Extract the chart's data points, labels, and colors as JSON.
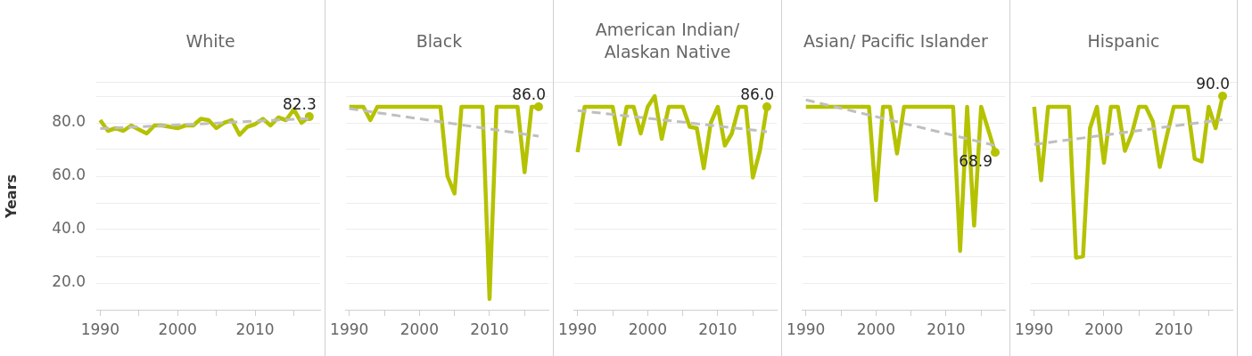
{
  "chart_data": [
    {
      "type": "line",
      "title": "White",
      "ylabel": "Years",
      "grid": "y",
      "x": [
        1990,
        1991,
        1992,
        1993,
        1994,
        1995,
        1996,
        1997,
        1998,
        1999,
        2000,
        2001,
        2002,
        2003,
        2004,
        2005,
        2006,
        2007,
        2008,
        2009,
        2010,
        2011,
        2012,
        2013,
        2014,
        2015,
        2016,
        2017
      ],
      "xlim": [
        1989.5,
        2018.4
      ],
      "xticks": [
        1990,
        {
          "value": 1995,
          "label": null
        },
        2000,
        {
          "value": 2005,
          "label": null
        },
        2010,
        {
          "value": 2015,
          "label": null
        }
      ],
      "ylim": [
        10,
        95
      ],
      "yticks": [
        {
          "value": 20,
          "label": "20.0"
        },
        {
          "value": 30,
          "label": null
        },
        {
          "value": 40,
          "label": "40.0"
        },
        {
          "value": 50,
          "label": null
        },
        {
          "value": 60,
          "label": "60.0"
        },
        {
          "value": 70,
          "label": null
        },
        {
          "value": 80,
          "label": "80.0"
        },
        {
          "value": 90,
          "label": null
        }
      ],
      "series": [
        {
          "type": "line",
          "color": "#bfbfbf",
          "line_style": "dashed",
          "x": [
            1990,
            2003.5,
            2017
          ],
          "values": [
            77.8,
            79.7,
            81.6
          ]
        },
        {
          "color": "#b5c200",
          "values": [
            81,
            77,
            78,
            77,
            79,
            77.5,
            76,
            79,
            79,
            78.5,
            78,
            79,
            79,
            81.5,
            81,
            78,
            80,
            81,
            75.5,
            78.5,
            79.5,
            81.5,
            79,
            82,
            81,
            85,
            80,
            82.3
          ],
          "value_labels": [
            null,
            null,
            null,
            null,
            null,
            null,
            null,
            null,
            null,
            null,
            null,
            null,
            null,
            null,
            null,
            null,
            null,
            null,
            null,
            null,
            null,
            null,
            null,
            null,
            null,
            null,
            null,
            "82.3"
          ]
        }
      ]
    },
    {
      "type": "line",
      "title": "Black",
      "tick_labels": "x",
      "grid": "y",
      "x": [
        1990,
        1991,
        1992,
        1993,
        1994,
        1995,
        1996,
        1997,
        1998,
        1999,
        2000,
        2001,
        2002,
        2003,
        2004,
        2005,
        2006,
        2007,
        2008,
        2009,
        2010,
        2011,
        2012,
        2013,
        2014,
        2015,
        2016,
        2017
      ],
      "xlim": [
        1989.5,
        2018.4
      ],
      "xticks": [
        1990,
        {
          "value": 1995,
          "label": null
        },
        2000,
        {
          "value": 2005,
          "label": null
        },
        2010,
        {
          "value": 2015,
          "label": null
        }
      ],
      "ylim": [
        10,
        95
      ],
      "yticks": [
        20,
        30,
        40,
        50,
        60,
        70,
        80,
        90
      ],
      "series": [
        {
          "type": "line",
          "color": "#bfbfbf",
          "line_style": "dashed",
          "x": [
            1990,
            2003.5,
            2017
          ],
          "values": [
            85.3,
            80.2,
            75
          ]
        },
        {
          "color": "#b5c200",
          "values": [
            86,
            86,
            86,
            81,
            86,
            86,
            86,
            86,
            86,
            86,
            86,
            86,
            86,
            86,
            60,
            53.5,
            86,
            86,
            86,
            86,
            14,
            86,
            86,
            86,
            86,
            61.5,
            86,
            86
          ],
          "value_labels": [
            null,
            null,
            null,
            null,
            null,
            null,
            null,
            null,
            null,
            null,
            null,
            null,
            null,
            null,
            null,
            null,
            null,
            null,
            null,
            null,
            null,
            null,
            null,
            null,
            null,
            null,
            null,
            "86.0"
          ]
        }
      ]
    },
    {
      "type": "line",
      "title": "American Indian/ Alaskan Native",
      "tick_labels": "x",
      "grid": "y",
      "x": [
        1990,
        1991,
        1992,
        1993,
        1994,
        1995,
        1996,
        1997,
        1998,
        1999,
        2000,
        2001,
        2002,
        2003,
        2004,
        2005,
        2006,
        2007,
        2008,
        2009,
        2010,
        2011,
        2012,
        2013,
        2014,
        2015,
        2016,
        2017
      ],
      "xlim": [
        1989.5,
        2018.4
      ],
      "xticks": [
        1990,
        {
          "value": 1995,
          "label": null
        },
        2000,
        {
          "value": 2005,
          "label": null
        },
        2010,
        {
          "value": 2015,
          "label": null
        }
      ],
      "ylim": [
        10,
        95
      ],
      "yticks": [
        20,
        30,
        40,
        50,
        60,
        70,
        80,
        90
      ],
      "series": [
        {
          "type": "line",
          "color": "#bfbfbf",
          "line_style": "dashed",
          "x": [
            1990,
            2003.5,
            2017
          ],
          "values": [
            84.6,
            80.7,
            76.7
          ]
        },
        {
          "color": "#b5c200",
          "values": [
            69,
            86,
            86,
            86,
            86,
            86,
            72,
            86,
            86,
            76,
            86,
            90,
            74,
            86,
            86,
            86,
            78.5,
            78,
            63,
            80,
            86,
            71.5,
            76,
            86,
            86,
            59.5,
            69.5,
            86
          ],
          "value_labels": [
            null,
            null,
            null,
            null,
            null,
            null,
            null,
            null,
            null,
            null,
            null,
            null,
            null,
            null,
            null,
            null,
            null,
            null,
            null,
            null,
            null,
            null,
            null,
            null,
            null,
            null,
            null,
            "86.0"
          ]
        }
      ]
    },
    {
      "type": "line",
      "title": "Asian/ Pacific Islander",
      "tick_labels": "x",
      "grid": "y",
      "x": [
        1990,
        1991,
        1992,
        1993,
        1994,
        1995,
        1996,
        1997,
        1998,
        1999,
        2000,
        2001,
        2002,
        2003,
        2004,
        2005,
        2006,
        2007,
        2008,
        2009,
        2010,
        2011,
        2012,
        2013,
        2014,
        2015,
        2016,
        2017
      ],
      "xlim": [
        1989.5,
        2018.4
      ],
      "xticks": [
        1990,
        {
          "value": 1995,
          "label": null
        },
        2000,
        {
          "value": 2005,
          "label": null
        },
        2010,
        {
          "value": 2015,
          "label": null
        }
      ],
      "ylim": [
        10,
        95
      ],
      "yticks": [
        20,
        30,
        40,
        50,
        60,
        70,
        80,
        90
      ],
      "series": [
        {
          "type": "line",
          "color": "#bfbfbf",
          "line_style": "dashed",
          "x": [
            1990,
            2003.5,
            2017
          ],
          "values": [
            88.6,
            80.1,
            71.5
          ]
        },
        {
          "color": "#b5c200",
          "values": [
            86,
            86,
            86,
            86,
            86,
            86,
            86,
            86,
            86,
            86,
            51,
            86,
            86,
            68.5,
            86,
            86,
            86,
            86,
            86,
            86,
            86,
            86,
            32,
            86,
            41.5,
            86,
            77.5,
            68.9
          ],
          "value_labels": [
            null,
            null,
            null,
            null,
            null,
            null,
            null,
            null,
            null,
            null,
            null,
            null,
            null,
            null,
            null,
            null,
            null,
            null,
            null,
            null,
            null,
            null,
            null,
            null,
            null,
            null,
            null,
            "68.9"
          ]
        }
      ]
    },
    {
      "type": "line",
      "title": "Hispanic",
      "tick_labels": "x",
      "grid": "y",
      "x": [
        1990,
        1991,
        1992,
        1993,
        1994,
        1995,
        1996,
        1997,
        1998,
        1999,
        2000,
        2001,
        2002,
        2003,
        2004,
        2005,
        2006,
        2007,
        2008,
        2009,
        2010,
        2011,
        2012,
        2013,
        2014,
        2015,
        2016,
        2017
      ],
      "xlim": [
        1989.5,
        2018.4
      ],
      "xticks": [
        1990,
        {
          "value": 1995,
          "label": null
        },
        2000,
        {
          "value": 2005,
          "label": null
        },
        2010,
        {
          "value": 2015,
          "label": null
        }
      ],
      "ylim": [
        10,
        95
      ],
      "yticks": [
        20,
        30,
        40,
        50,
        60,
        70,
        80,
        90
      ],
      "series": [
        {
          "type": "line",
          "color": "#bfbfbf",
          "line_style": "dashed",
          "x": [
            1990,
            2003.5,
            2017
          ],
          "values": [
            71.9,
            76.6,
            81.2
          ]
        },
        {
          "color": "#b5c200",
          "values": [
            86,
            58.5,
            86,
            86,
            86,
            86,
            29.5,
            30,
            78,
            86,
            65,
            86,
            86,
            69.5,
            76,
            86,
            86,
            80.5,
            63.5,
            75,
            86,
            86,
            86,
            66.5,
            65.5,
            86,
            78,
            90
          ],
          "value_labels": [
            null,
            null,
            null,
            null,
            null,
            null,
            null,
            null,
            null,
            null,
            null,
            null,
            null,
            null,
            null,
            null,
            null,
            null,
            null,
            null,
            null,
            null,
            null,
            null,
            null,
            null,
            null,
            "90.0"
          ]
        }
      ]
    }
  ]
}
